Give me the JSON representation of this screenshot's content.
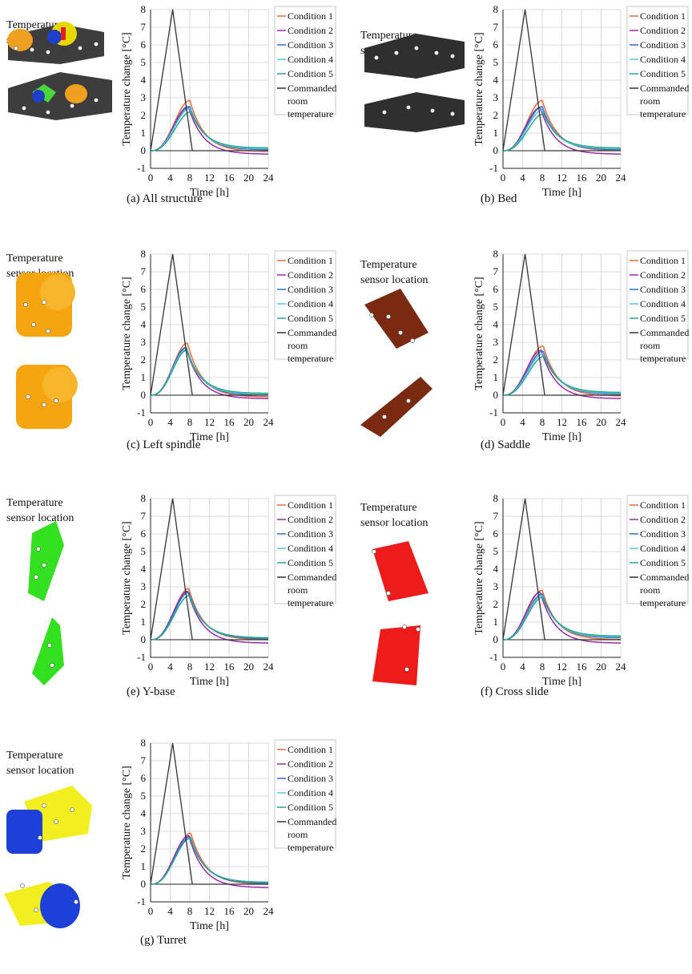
{
  "common": {
    "sensor_label_line1": "Temperature",
    "sensor_label_line2": "sensor location",
    "xlabel": "Time [h]",
    "ylabel": "Temperature change [°C]",
    "legend": [
      "Condition 1",
      "Condition 2",
      "Condition 3",
      "Condition 4",
      "Condition 5",
      "Commanded",
      "room",
      "temperature"
    ],
    "colors": {
      "c1": "#ee6a3a",
      "c2": "#9b2aa8",
      "c3": "#2e6fcf",
      "c4": "#58c7e0",
      "c5": "#2aa98b",
      "commanded": "#333333"
    }
  },
  "panels": [
    {
      "id": "a",
      "caption": "(a) All structure",
      "machine": "all-structure"
    },
    {
      "id": "b",
      "caption": "(b) Bed",
      "machine": "bed"
    },
    {
      "id": "c",
      "caption": "(c) Left spindle",
      "machine": "left-spindle"
    },
    {
      "id": "d",
      "caption": "(d) Saddle",
      "machine": "saddle"
    },
    {
      "id": "e",
      "caption": "(e) Y-base",
      "machine": "y-base"
    },
    {
      "id": "f",
      "caption": "(f) Cross slide",
      "machine": "cross-slide"
    },
    {
      "id": "g",
      "caption": "(g) Turret",
      "machine": "turret"
    }
  ],
  "chart_data": [
    {
      "type": "line",
      "panel": "a",
      "xlabel": "Time [h]",
      "ylabel": "Temperature change [°C]",
      "xlim": [
        0,
        24
      ],
      "ylim": [
        -1,
        8
      ],
      "xticks": [
        0,
        4,
        8,
        12,
        16,
        20,
        24
      ],
      "yticks": [
        -1,
        0,
        1,
        2,
        3,
        4,
        5,
        6,
        7,
        8
      ],
      "grid": true,
      "legend": "right",
      "series": [
        {
          "name": "Condition 1",
          "peak": 2.85,
          "peak_x": 8.0,
          "end": -0.05
        },
        {
          "name": "Condition 2",
          "peak": 2.5,
          "peak_x": 7.7,
          "end": -0.2
        },
        {
          "name": "Condition 3",
          "peak": 2.5,
          "peak_x": 8.0,
          "end": 0.05
        },
        {
          "name": "Condition 4",
          "peak": 2.4,
          "peak_x": 8.0,
          "end": 0.1
        },
        {
          "name": "Condition 5",
          "peak": 2.2,
          "peak_x": 8.2,
          "end": 0.15
        },
        {
          "name": "Commanded room temperature",
          "x": [
            0,
            4.5,
            8.5,
            24
          ],
          "y": [
            0,
            8,
            0,
            0
          ]
        }
      ]
    },
    {
      "type": "line",
      "panel": "b",
      "xlabel": "Time [h]",
      "ylabel": "Temperature change [°C]",
      "xlim": [
        0,
        24
      ],
      "ylim": [
        -1,
        8
      ],
      "xticks": [
        0,
        4,
        8,
        12,
        16,
        20,
        24
      ],
      "yticks": [
        -1,
        0,
        1,
        2,
        3,
        4,
        5,
        6,
        7,
        8
      ],
      "grid": true,
      "legend": "right",
      "series": [
        {
          "name": "Condition 1",
          "peak": 2.85,
          "peak_x": 8.0,
          "end": 0.0
        },
        {
          "name": "Condition 2",
          "peak": 2.45,
          "peak_x": 7.6,
          "end": -0.2
        },
        {
          "name": "Condition 3",
          "peak": 2.5,
          "peak_x": 8.0,
          "end": 0.05
        },
        {
          "name": "Condition 4",
          "peak": 2.3,
          "peak_x": 8.0,
          "end": 0.1
        },
        {
          "name": "Condition 5",
          "peak": 2.1,
          "peak_x": 8.3,
          "end": 0.15
        },
        {
          "name": "Commanded room temperature",
          "x": [
            0,
            4.5,
            8.5,
            24
          ],
          "y": [
            0,
            8,
            0,
            0
          ]
        }
      ]
    },
    {
      "type": "line",
      "panel": "c",
      "xlabel": "Time [h]",
      "ylabel": "Temperature change [°C]",
      "xlim": [
        0,
        24
      ],
      "ylim": [
        -1,
        8
      ],
      "xticks": [
        0,
        4,
        8,
        12,
        16,
        20,
        24
      ],
      "yticks": [
        -1,
        0,
        1,
        2,
        3,
        4,
        5,
        6,
        7,
        8
      ],
      "grid": true,
      "legend": "right",
      "series": [
        {
          "name": "Condition 1",
          "peak": 2.95,
          "peak_x": 7.5,
          "end": -0.1
        },
        {
          "name": "Condition 2",
          "peak": 2.7,
          "peak_x": 7.2,
          "end": -0.2
        },
        {
          "name": "Condition 3",
          "peak": 2.7,
          "peak_x": 7.3,
          "end": 0.0
        },
        {
          "name": "Condition 4",
          "peak": 2.6,
          "peak_x": 7.3,
          "end": 0.05
        },
        {
          "name": "Condition 5",
          "peak": 2.55,
          "peak_x": 7.4,
          "end": 0.1
        },
        {
          "name": "Commanded room temperature",
          "x": [
            0,
            4.5,
            8.5,
            24
          ],
          "y": [
            0,
            8,
            0,
            0
          ]
        }
      ]
    },
    {
      "type": "line",
      "panel": "d",
      "xlabel": "Time [h]",
      "ylabel": "Temperature change [°C]",
      "xlim": [
        0,
        24
      ],
      "ylim": [
        -1,
        8
      ],
      "xticks": [
        0,
        4,
        8,
        12,
        16,
        20,
        24
      ],
      "yticks": [
        -1,
        0,
        1,
        2,
        3,
        4,
        5,
        6,
        7,
        8
      ],
      "grid": true,
      "legend": "right",
      "series": [
        {
          "name": "Condition 1",
          "peak": 2.8,
          "peak_x": 8.2,
          "end": -0.05
        },
        {
          "name": "Condition 2",
          "peak": 2.55,
          "peak_x": 7.8,
          "end": -0.2
        },
        {
          "name": "Condition 3",
          "peak": 2.5,
          "peak_x": 8.2,
          "end": 0.05
        },
        {
          "name": "Condition 4",
          "peak": 2.35,
          "peak_x": 8.2,
          "end": 0.1
        },
        {
          "name": "Condition 5",
          "peak": 2.2,
          "peak_x": 8.4,
          "end": 0.15
        },
        {
          "name": "Commanded room temperature",
          "x": [
            0,
            4.5,
            8.5,
            24
          ],
          "y": [
            0,
            8,
            0,
            0
          ]
        }
      ]
    },
    {
      "type": "line",
      "panel": "e",
      "xlabel": "Time [h]",
      "ylabel": "Temperature change [°C]",
      "xlim": [
        0,
        24
      ],
      "ylim": [
        -1,
        8
      ],
      "xticks": [
        0,
        4,
        8,
        12,
        16,
        20,
        24
      ],
      "yticks": [
        -1,
        0,
        1,
        2,
        3,
        4,
        5,
        6,
        7,
        8
      ],
      "grid": true,
      "legend": "right",
      "series": [
        {
          "name": "Condition 1",
          "peak": 2.9,
          "peak_x": 7.8,
          "end": 0.0
        },
        {
          "name": "Condition 2",
          "peak": 2.75,
          "peak_x": 7.6,
          "end": -0.2
        },
        {
          "name": "Condition 3",
          "peak": 2.7,
          "peak_x": 7.8,
          "end": 0.05
        },
        {
          "name": "Condition 4",
          "peak": 2.5,
          "peak_x": 7.9,
          "end": 0.1
        },
        {
          "name": "Condition 5",
          "peak": 2.5,
          "peak_x": 7.9,
          "end": 0.1
        },
        {
          "name": "Commanded room temperature",
          "x": [
            0,
            4.5,
            8.5,
            24
          ],
          "y": [
            0,
            8,
            0,
            0
          ]
        }
      ]
    },
    {
      "type": "line",
      "panel": "f",
      "xlabel": "Time [h]",
      "ylabel": "Temperature change [°C]",
      "xlim": [
        0,
        24
      ],
      "ylim": [
        -1,
        8
      ],
      "xticks": [
        0,
        4,
        8,
        12,
        16,
        20,
        24
      ],
      "yticks": [
        -1,
        0,
        1,
        2,
        3,
        4,
        5,
        6,
        7,
        8
      ],
      "grid": true,
      "legend": "right",
      "series": [
        {
          "name": "Condition 1",
          "peak": 2.8,
          "peak_x": 8.0,
          "end": 0.0
        },
        {
          "name": "Condition 2",
          "peak": 2.7,
          "peak_x": 7.6,
          "end": -0.2
        },
        {
          "name": "Condition 3",
          "peak": 2.6,
          "peak_x": 8.0,
          "end": 0.1
        },
        {
          "name": "Condition 4",
          "peak": 2.5,
          "peak_x": 8.0,
          "end": 0.15
        },
        {
          "name": "Condition 5",
          "peak": 2.4,
          "peak_x": 8.1,
          "end": 0.2
        },
        {
          "name": "Commanded room temperature",
          "x": [
            0,
            4.5,
            8.5,
            24
          ],
          "y": [
            0,
            8,
            0,
            0
          ]
        }
      ]
    },
    {
      "type": "line",
      "panel": "g",
      "xlabel": "Time [h]",
      "ylabel": "Temperature change [°C]",
      "xlim": [
        0,
        24
      ],
      "ylim": [
        -1,
        8
      ],
      "xticks": [
        0,
        4,
        8,
        12,
        16,
        20,
        24
      ],
      "yticks": [
        -1,
        0,
        1,
        2,
        3,
        4,
        5,
        6,
        7,
        8
      ],
      "grid": true,
      "legend": "right",
      "series": [
        {
          "name": "Condition 1",
          "peak": 2.9,
          "peak_x": 8.2,
          "end": 0.0
        },
        {
          "name": "Condition 2",
          "peak": 2.75,
          "peak_x": 7.8,
          "end": -0.2
        },
        {
          "name": "Condition 3",
          "peak": 2.7,
          "peak_x": 8.1,
          "end": 0.05
        },
        {
          "name": "Condition 4",
          "peak": 2.6,
          "peak_x": 8.1,
          "end": 0.1
        },
        {
          "name": "Condition 5",
          "peak": 2.6,
          "peak_x": 8.1,
          "end": 0.1
        },
        {
          "name": "Commanded room temperature",
          "x": [
            0,
            4.5,
            8.5,
            24
          ],
          "y": [
            0,
            8,
            0,
            0
          ]
        }
      ]
    }
  ]
}
